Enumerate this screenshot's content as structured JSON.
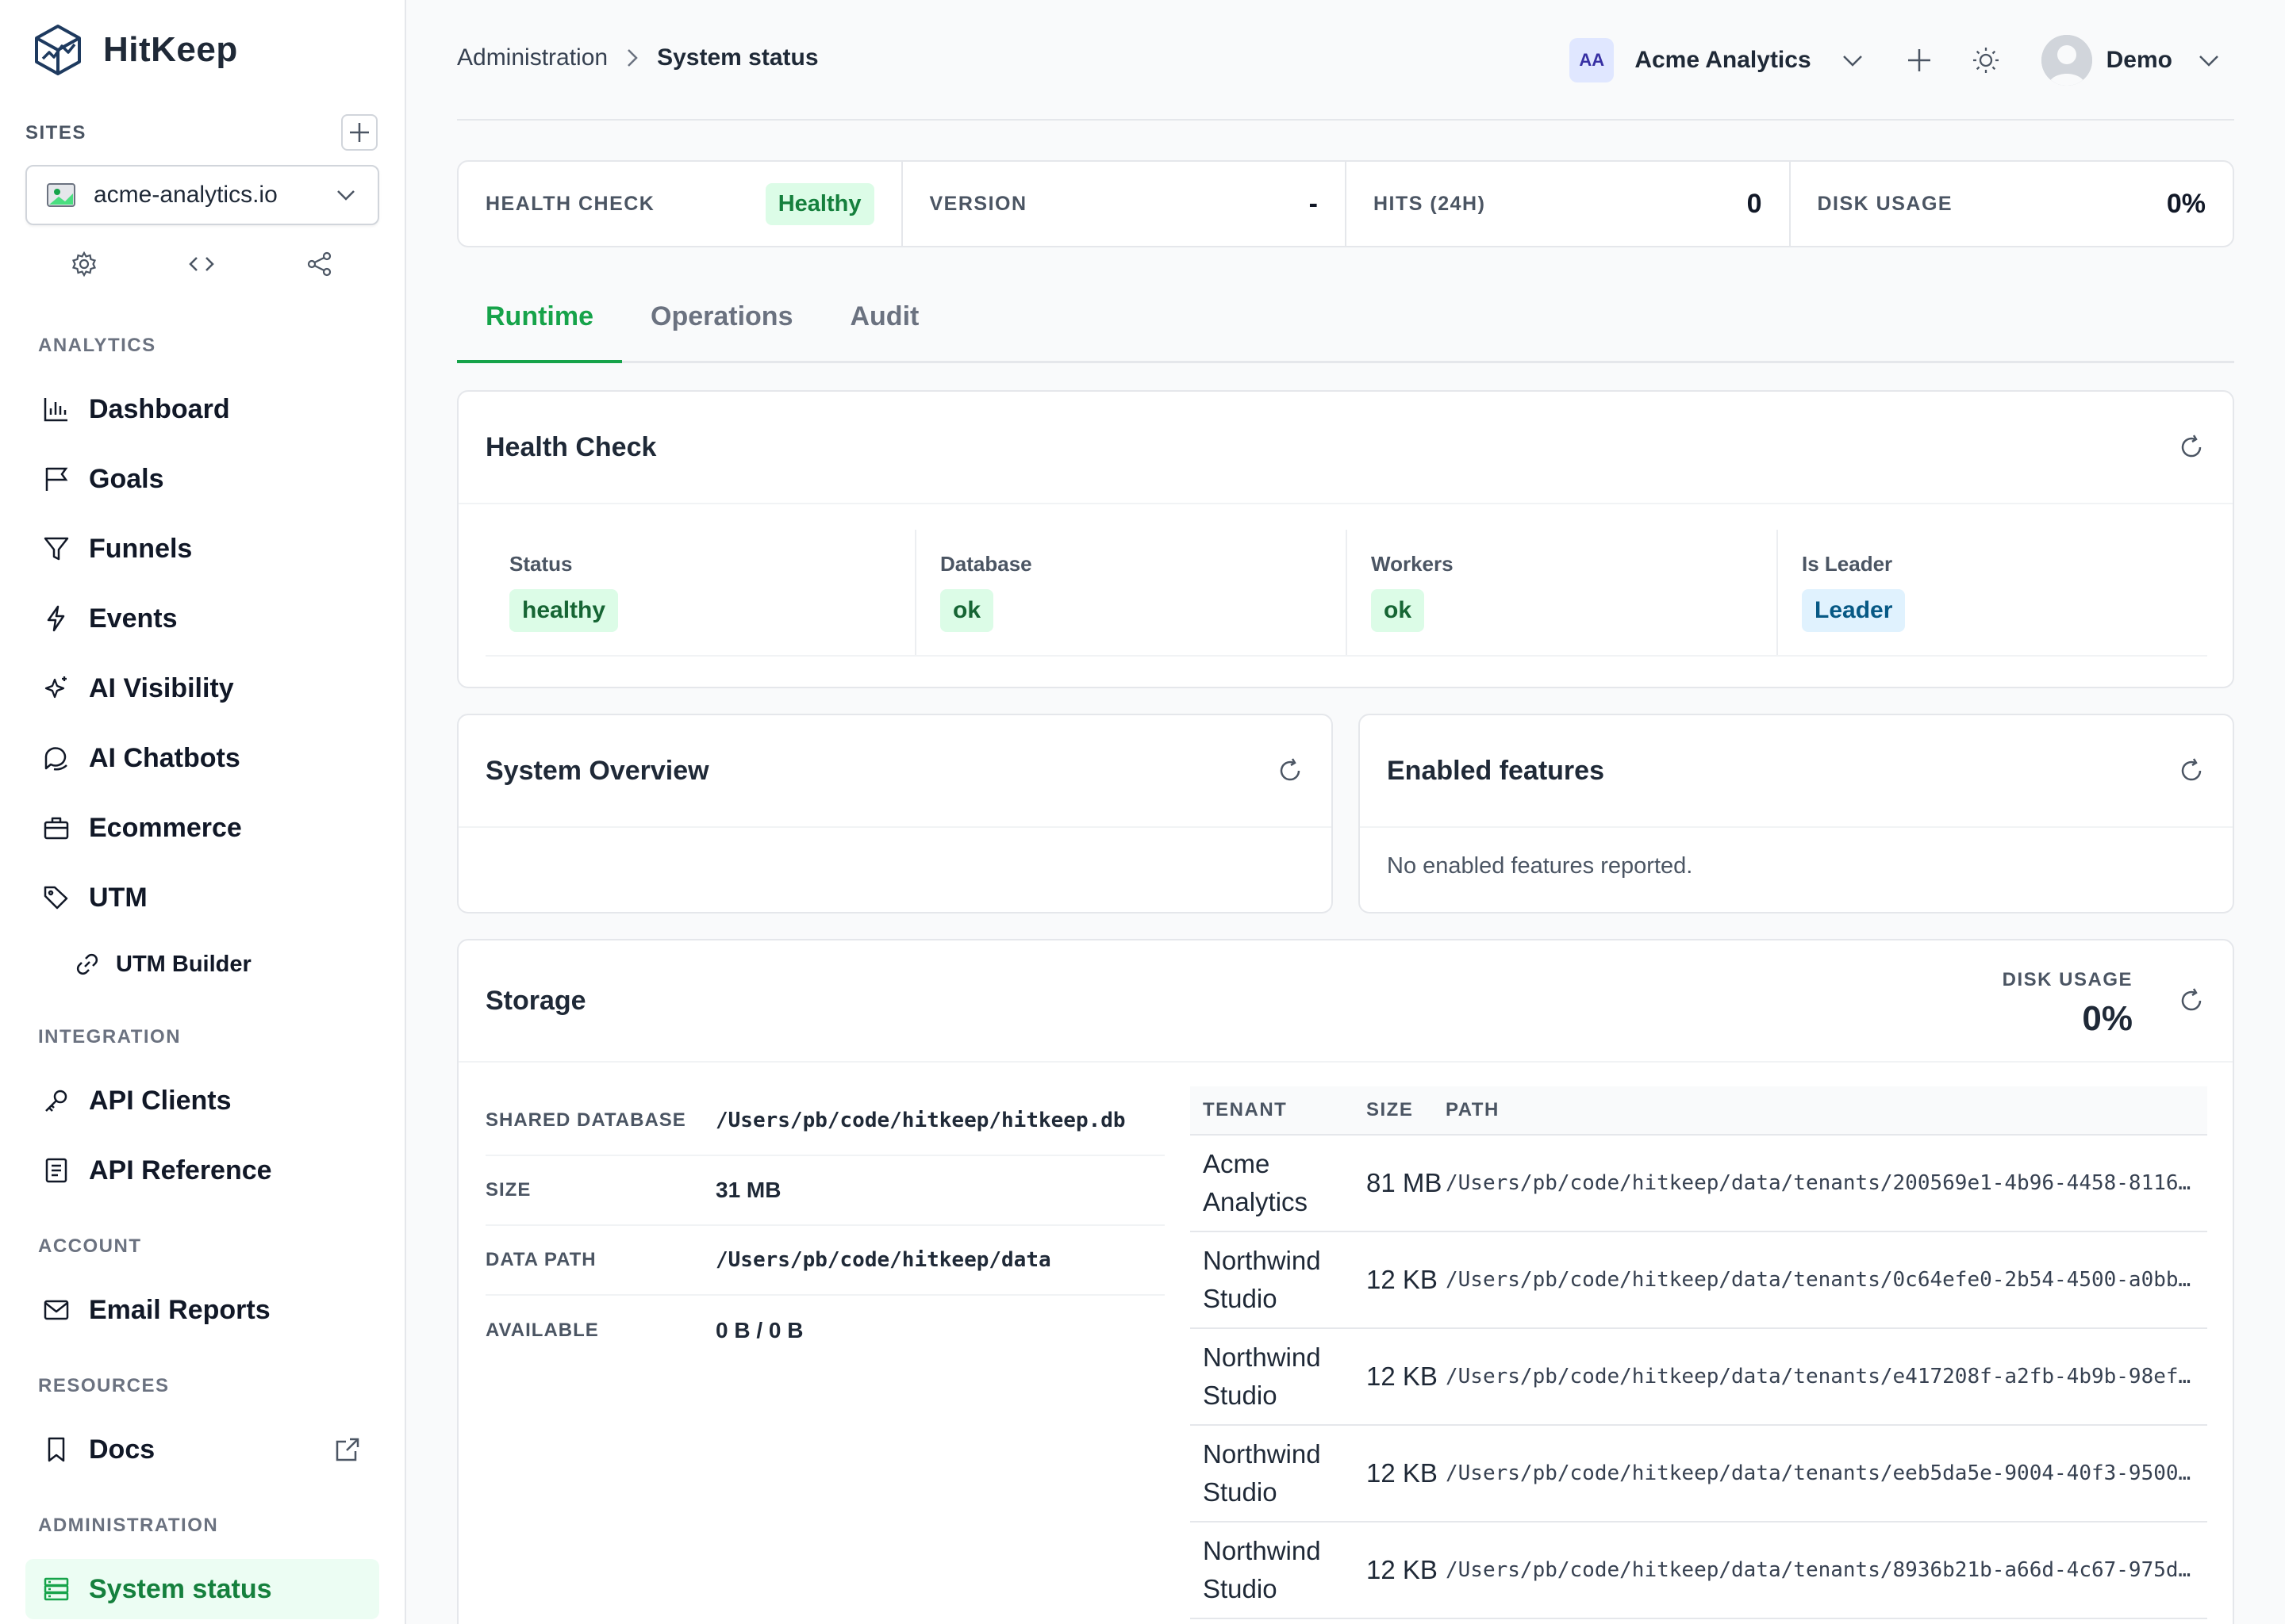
{
  "app": {
    "name": "HitKeep"
  },
  "sidebar": {
    "sites_label": "SITES",
    "site_name": "acme-analytics.io",
    "sections": {
      "analytics": "ANALYTICS",
      "integration": "INTEGRATION",
      "account": "ACCOUNT",
      "resources": "RESOURCES",
      "administration": "ADMINISTRATION"
    },
    "items": {
      "dashboard": "Dashboard",
      "goals": "Goals",
      "funnels": "Funnels",
      "events": "Events",
      "ai_visibility": "AI Visibility",
      "ai_chatbots": "AI Chatbots",
      "ecommerce": "Ecommerce",
      "utm": "UTM",
      "utm_builder": "UTM Builder",
      "api_clients": "API Clients",
      "api_reference": "API Reference",
      "email_reports": "Email Reports",
      "docs": "Docs",
      "system_status": "System status"
    }
  },
  "header": {
    "breadcrumb": [
      "Administration",
      "System status"
    ],
    "org_initials": "AA",
    "org_name": "Acme Analytics",
    "user_name": "Demo"
  },
  "stats": {
    "health_label": "HEALTH CHECK",
    "health_value": "Healthy",
    "version_label": "VERSION",
    "version_value": "-",
    "hits_label": "HITS (24H)",
    "hits_value": "0",
    "disk_label": "DISK USAGE",
    "disk_value": "0%"
  },
  "tabs": [
    "Runtime",
    "Operations",
    "Audit"
  ],
  "health_check": {
    "title": "Health Check",
    "status_label": "Status",
    "status_value": "healthy",
    "database_label": "Database",
    "database_value": "ok",
    "workers_label": "Workers",
    "workers_value": "ok",
    "leader_label": "Is Leader",
    "leader_value": "Leader"
  },
  "system_overview": {
    "title": "System Overview"
  },
  "enabled_features": {
    "title": "Enabled features",
    "empty": "No enabled features reported."
  },
  "storage": {
    "title": "Storage",
    "disk_label": "DISK USAGE",
    "disk_value": "0%",
    "shared_db_label": "SHARED DATABASE",
    "shared_db_value": "/Users/pb/code/hitkeep/hitkeep.db",
    "size_label": "SIZE",
    "size_value": "31 MB",
    "data_path_label": "DATA PATH",
    "data_path_value": "/Users/pb/code/hitkeep/data",
    "available_label": "AVAILABLE",
    "available_value": "0 B / 0 B",
    "table_headers": {
      "tenant": "TENANT",
      "size": "SIZE",
      "path": "PATH"
    },
    "tenants": [
      {
        "name": "Acme Analytics",
        "size": "81 MB",
        "path": "/Users/pb/code/hitkeep/data/tenants/200569e1-4b96-4458-8116…"
      },
      {
        "name": "Northwind Studio",
        "size": "12 KB",
        "path": "/Users/pb/code/hitkeep/data/tenants/0c64efe0-2b54-4500-a0bb…"
      },
      {
        "name": "Northwind Studio",
        "size": "12 KB",
        "path": "/Users/pb/code/hitkeep/data/tenants/e417208f-a2fb-4b9b-98ef…"
      },
      {
        "name": "Northwind Studio",
        "size": "12 KB",
        "path": "/Users/pb/code/hitkeep/data/tenants/eeb5da5e-9004-40f3-9500…"
      },
      {
        "name": "Northwind Studio",
        "size": "12 KB",
        "path": "/Users/pb/code/hitkeep/data/tenants/8936b21b-a66d-4c67-975d…"
      }
    ]
  }
}
